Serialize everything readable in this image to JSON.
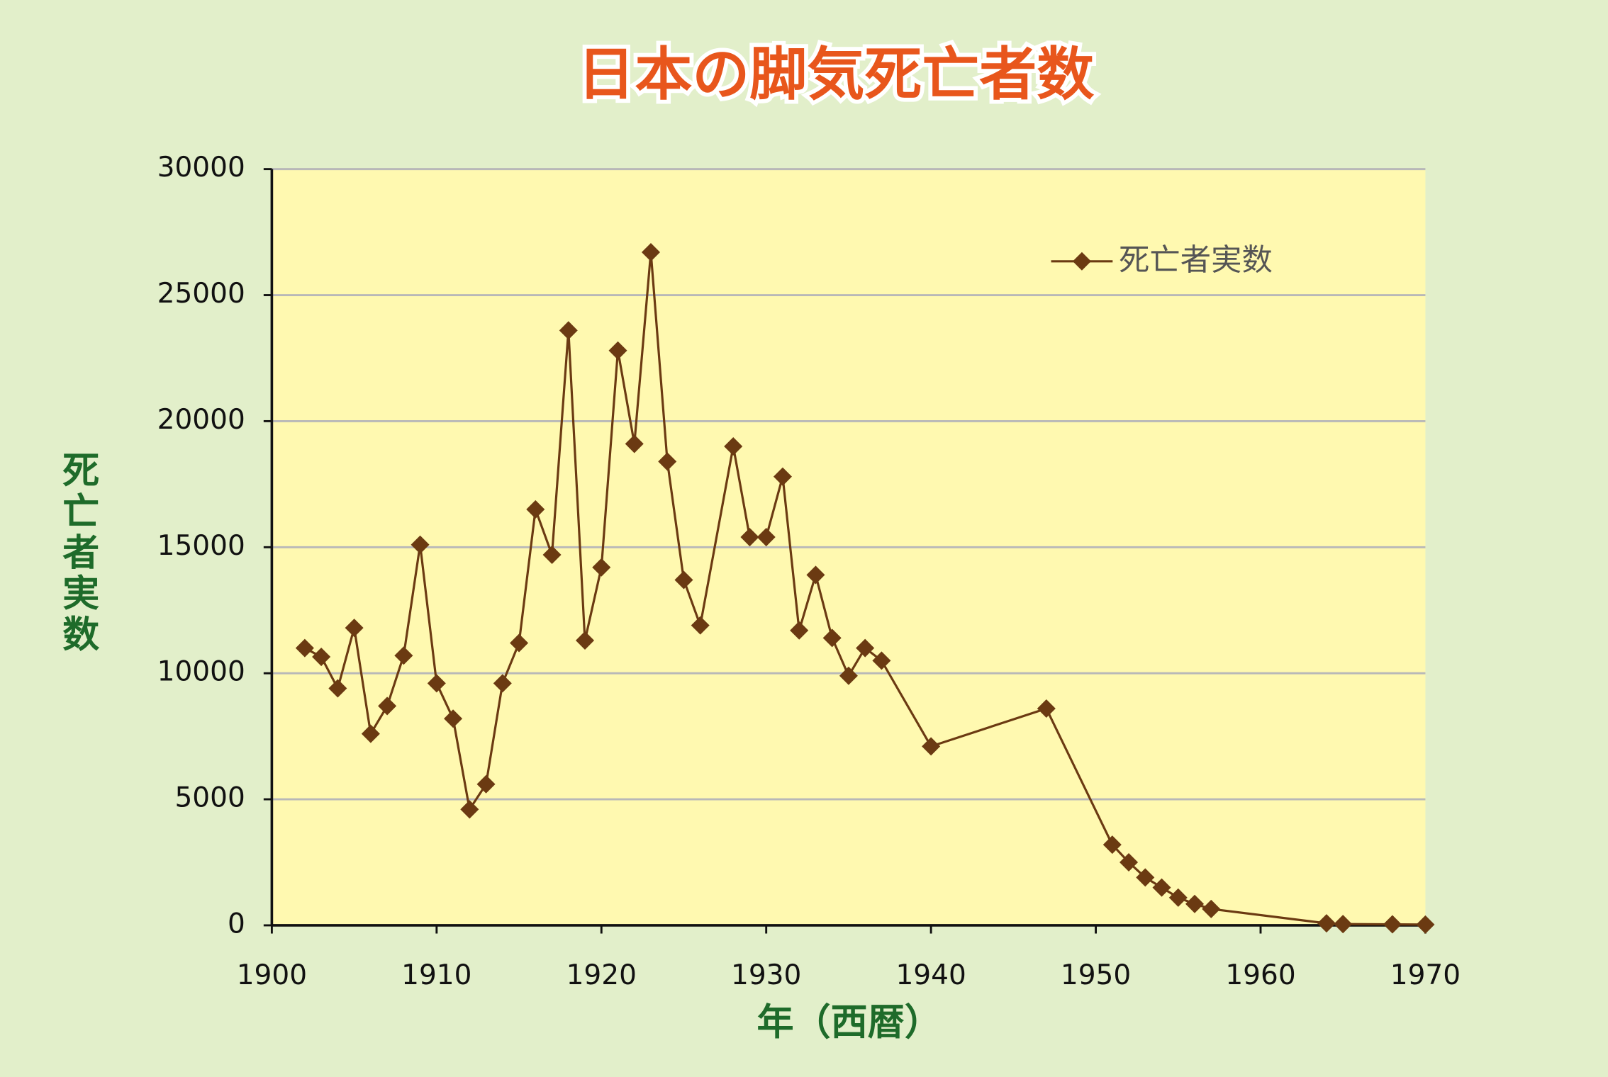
{
  "chart_data": {
    "type": "line",
    "title": "日本の脚気死亡者数",
    "x_label": "年（西暦）",
    "y_label": "死亡者実数",
    "x": [
      1902,
      1903,
      1904,
      1905,
      1906,
      1907,
      1908,
      1909,
      1910,
      1911,
      1912,
      1913,
      1914,
      1915,
      1916,
      1917,
      1918,
      1919,
      1920,
      1921,
      1922,
      1923,
      1924,
      1925,
      1926,
      1928,
      1929,
      1930,
      1931,
      1932,
      1933,
      1934,
      1935,
      1936,
      1937,
      1940,
      1947,
      1951,
      1952,
      1953,
      1954,
      1955,
      1956,
      1957,
      1964,
      1965,
      1968,
      1970
    ],
    "series": [
      {
        "name": "死亡者実数",
        "color": "#6b3a12",
        "values": [
          11000,
          10650,
          9400,
          11800,
          7600,
          8700,
          10700,
          15100,
          9600,
          8200,
          4600,
          5600,
          9600,
          11200,
          16500,
          14700,
          23600,
          11300,
          14200,
          22800,
          19100,
          26700,
          18400,
          13700,
          11900,
          19000,
          15400,
          15400,
          17800,
          11700,
          13900,
          11400,
          9900,
          11000,
          10500,
          7100,
          8600,
          3200,
          2500,
          1900,
          1500,
          1100,
          850,
          650,
          80,
          50,
          40,
          30
        ]
      }
    ],
    "xlim": [
      1900,
      1970
    ],
    "xticks": [
      1900,
      1910,
      1920,
      1930,
      1940,
      1950,
      1960,
      1970
    ],
    "ylim": [
      0,
      30000
    ],
    "yticks": [
      0,
      5000,
      10000,
      15000,
      20000,
      25000,
      30000
    ],
    "grid": true,
    "legend": "upper right"
  }
}
